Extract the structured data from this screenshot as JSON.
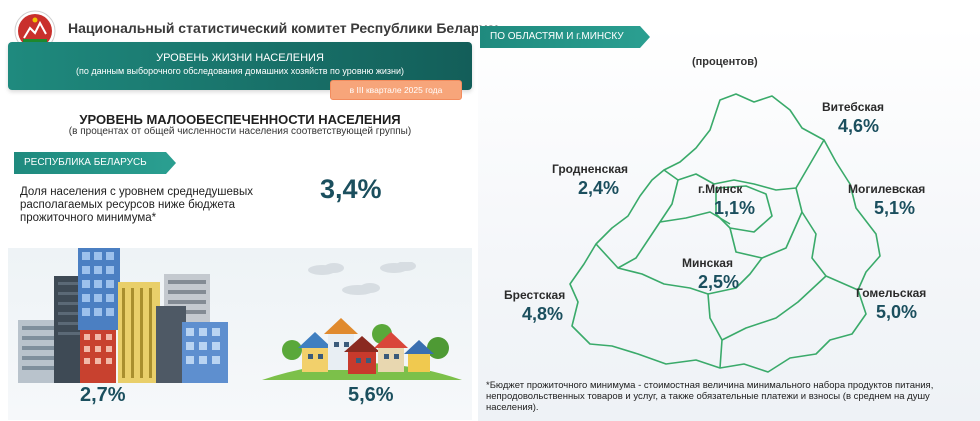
{
  "header": {
    "org_title": "Национальный статистический комитет Республики Беларусь"
  },
  "banner": {
    "title": "УРОВЕНЬ ЖИЗНИ НАСЕЛЕНИЯ",
    "subtitle": "(по данным выборочного обследования домашних хозяйств по уровню жизни)",
    "quarter": "в III квартале 2025 года"
  },
  "section": {
    "title": "УРОВЕНЬ МАЛООБЕСПЕЧЕННОСТИ НАСЕЛЕНИЯ",
    "subtitle": "(в процентах от общей численности населения соответствующей группы)"
  },
  "republic": {
    "tab_label": "РЕСПУБЛИКА БЕЛАРУСЬ",
    "share_label": "Доля населения с уровнем среднедушевых располагаемых ресурсов ниже бюджета прожиточного минимума*",
    "share_value": "3,4%",
    "urban_value": "2,7%",
    "rural_value": "5,6%"
  },
  "regions": {
    "tab_label": "ПО ОБЛАСТЯМ И г.МИНСКУ",
    "unit": "(процентов)",
    "items": [
      {
        "name": "Витебская",
        "value": "4,6%"
      },
      {
        "name": "Гродненская",
        "value": "2,4%"
      },
      {
        "name": "г.Минск",
        "value": "1,1%"
      },
      {
        "name": "Могилевская",
        "value": "5,1%"
      },
      {
        "name": "Минская",
        "value": "2,5%"
      },
      {
        "name": "Брестская",
        "value": "4,8%"
      },
      {
        "name": "Гомельская",
        "value": "5,0%"
      }
    ]
  },
  "footnote": "*Бюджет прожиточного минимума - стоимостная величина минимального набора продуктов питания, непродовольственных товаров и услуг, а также обязательные платежи и взносы (в среднем на душу населения).",
  "colors": {
    "teal": "#1f8a7e",
    "value_blue": "#1b4f5e",
    "badge_orange": "#f7a57a",
    "map_green": "#3aaa6a"
  }
}
